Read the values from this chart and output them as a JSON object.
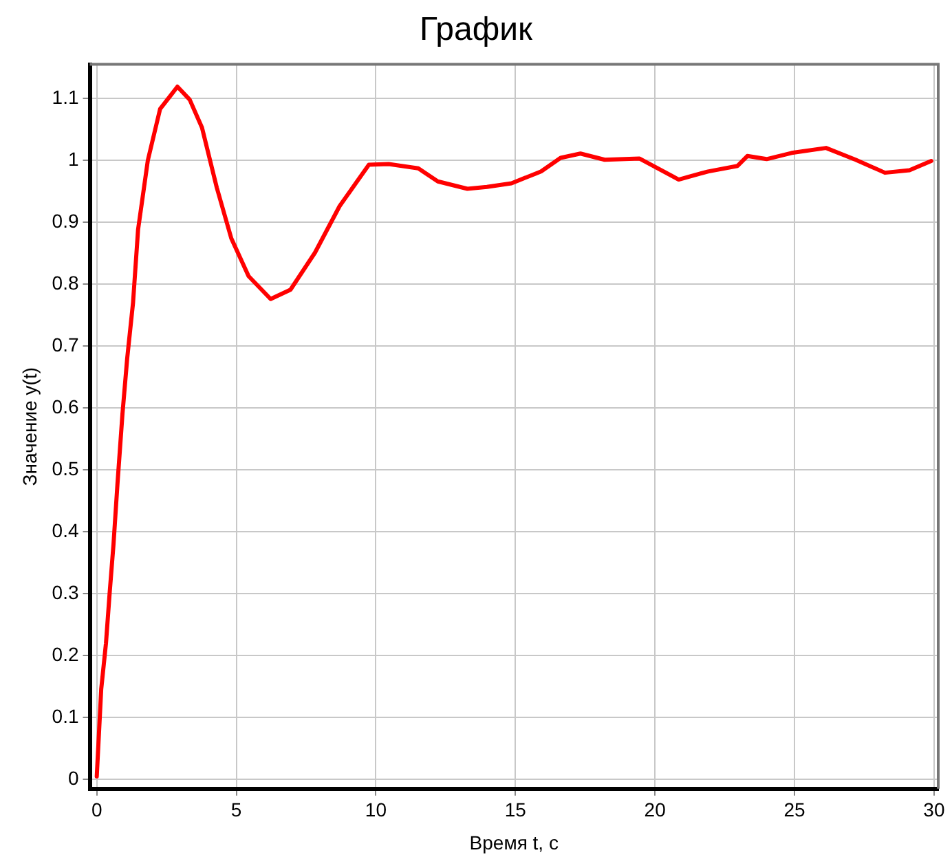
{
  "chart_data": {
    "type": "line",
    "title": "График",
    "xlabel": "Время t, с",
    "ylabel": "Значение y(t)",
    "xlim": [
      -0.25,
      30.15
    ],
    "ylim": [
      -0.015,
      1.155
    ],
    "xticks": [
      0,
      5,
      10,
      15,
      20,
      25,
      30
    ],
    "yticks": [
      0,
      0.1,
      0.2,
      0.3,
      0.4,
      0.5,
      0.6,
      0.7,
      0.8,
      0.9,
      1,
      1.1
    ],
    "grid": true,
    "legend": false,
    "marker": "none",
    "line_style": "solid",
    "series": [
      {
        "color": "#ff0000",
        "x": [
          0,
          0.16,
          0.33,
          0.46,
          0.6,
          0.74,
          0.92,
          1.09,
          1.3,
          1.48,
          1.83,
          2.27,
          2.89,
          3.33,
          3.77,
          4.3,
          4.82,
          5.44,
          6.23,
          6.94,
          7.82,
          8.7,
          9.75,
          10.46,
          11.52,
          12.22,
          13.28,
          13.98,
          14.86,
          15.92,
          16.62,
          17.33,
          18.2,
          19.44,
          20.85,
          21.9,
          22.96,
          23.31,
          24.0,
          24.9,
          26.13,
          27.19,
          28.24,
          29.12,
          29.9
        ],
        "values": [
          0.005,
          0.146,
          0.22,
          0.3,
          0.38,
          0.476,
          0.59,
          0.68,
          0.77,
          0.888,
          1.0,
          1.083,
          1.119,
          1.098,
          1.053,
          0.956,
          0.874,
          0.813,
          0.776,
          0.791,
          0.851,
          0.926,
          0.993,
          0.994,
          0.987,
          0.966,
          0.954,
          0.957,
          0.963,
          0.982,
          1.004,
          1.011,
          1.001,
          1.003,
          0.969,
          0.982,
          0.991,
          1.007,
          1.002,
          1.012,
          1.02,
          1.001,
          0.98,
          0.984,
          0.999
        ]
      }
    ]
  }
}
